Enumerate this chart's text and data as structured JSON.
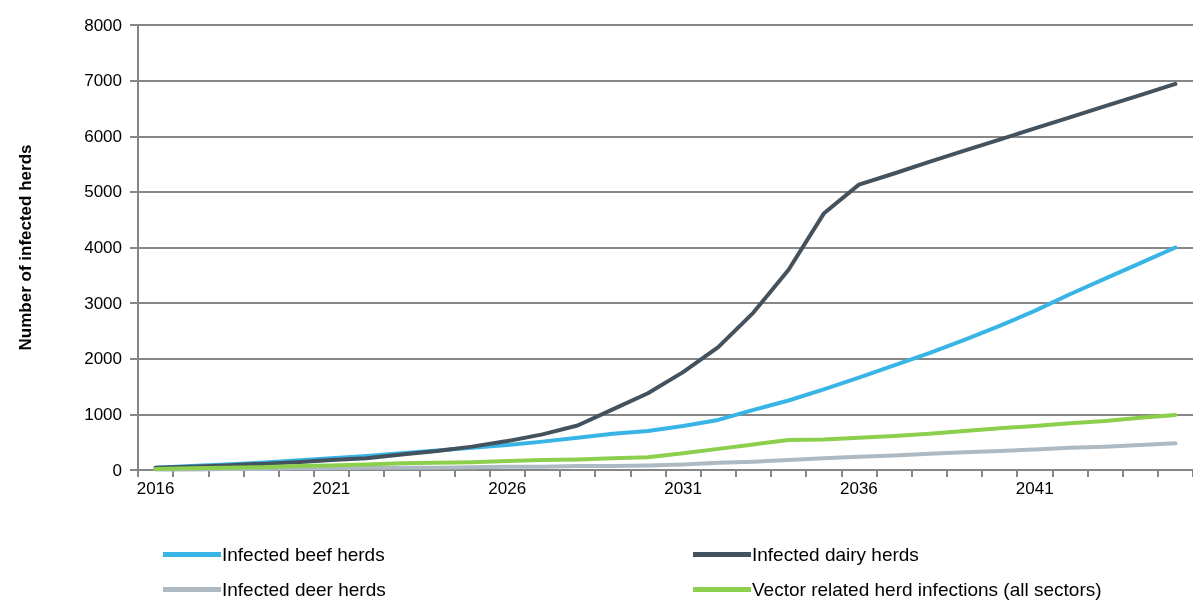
{
  "chart_data": {
    "type": "line",
    "ylabel": "Number of infected herds",
    "categories": [
      "2016",
      null,
      null,
      null,
      null,
      "2021",
      null,
      null,
      null,
      null,
      "2026",
      null,
      null,
      null,
      null,
      "2031",
      null,
      null,
      null,
      null,
      "2036",
      null,
      null,
      null,
      null,
      "2041",
      null,
      null,
      null,
      null
    ],
    "series": [
      {
        "name": "Infected beef herds",
        "color": "#38b4e6",
        "values": [
          40,
          70,
          100,
          130,
          170,
          210,
          250,
          300,
          350,
          400,
          450,
          510,
          580,
          650,
          700,
          790,
          900,
          1080,
          1250,
          1450,
          1660,
          1880,
          2100,
          2340,
          2590,
          2860,
          3160,
          3440,
          3720,
          4000
        ]
      },
      {
        "name": "Infected dairy herds",
        "color": "#44525e",
        "values": [
          40,
          60,
          80,
          110,
          140,
          180,
          210,
          280,
          340,
          420,
          520,
          640,
          800,
          1090,
          1380,
          1760,
          2210,
          2830,
          3600,
          4610,
          5130,
          5330,
          5540,
          5740,
          5940,
          6140,
          6340,
          6540,
          6740,
          6940
        ]
      },
      {
        "name": "Infected deer herds",
        "color": "#adb9c3",
        "values": [
          10,
          10,
          20,
          20,
          30,
          30,
          40,
          40,
          40,
          50,
          60,
          60,
          70,
          70,
          80,
          100,
          130,
          150,
          180,
          210,
          240,
          260,
          290,
          320,
          340,
          370,
          400,
          420,
          450,
          480
        ]
      },
      {
        "name": "Vector related herd infections (all sectors)",
        "color": "#8ccf4c",
        "values": [
          20,
          30,
          40,
          50,
          70,
          80,
          100,
          120,
          130,
          140,
          160,
          180,
          190,
          210,
          230,
          300,
          380,
          460,
          540,
          550,
          580,
          610,
          650,
          700,
          750,
          790,
          840,
          880,
          940,
          990
        ]
      }
    ],
    "ylim": [
      0,
      8000
    ],
    "yticks": [
      0,
      1000,
      2000,
      3000,
      4000,
      5000,
      6000,
      7000,
      8000
    ],
    "grid": "y",
    "legend": "bottom",
    "marker": "none",
    "line_style": "solid"
  }
}
